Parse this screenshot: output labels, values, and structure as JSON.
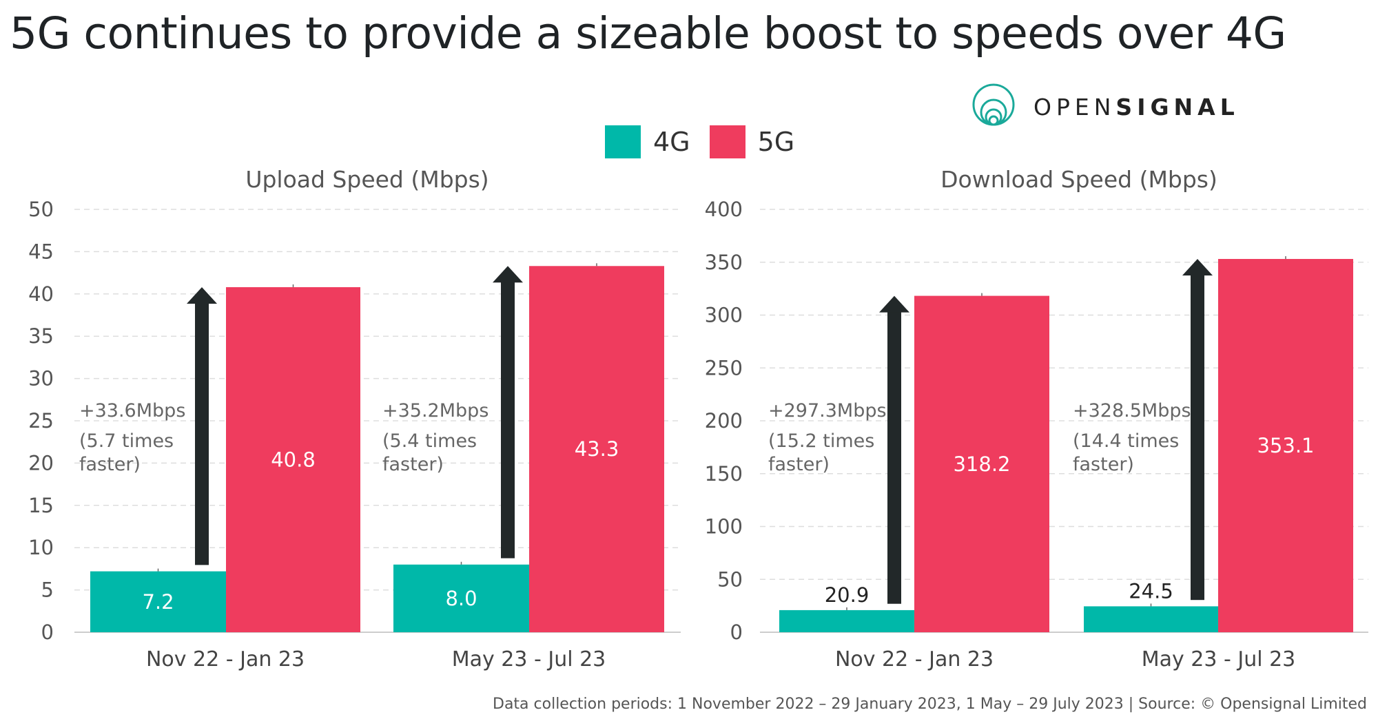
{
  "title": "5G continues to provide a sizeable boost to speeds over 4G",
  "logo": {
    "text_light": "OPEN",
    "text_bold": "SIGNAL"
  },
  "legend": [
    {
      "label": "4G",
      "color": "#00b8a9"
    },
    {
      "label": "5G",
      "color": "#ef3c5e"
    }
  ],
  "footer": "Data collection periods: 1 November 2022 – 29 January 2023, 1 May – 29 July 2023 | Source:  © Opensignal Limited",
  "chart_data": [
    {
      "type": "bar",
      "title": "Upload Speed (Mbps)",
      "categories": [
        "Nov 22 - Jan 23",
        "May 23 - Jul 23"
      ],
      "series": [
        {
          "name": "4G",
          "values": [
            7.2,
            8.0
          ],
          "labels": [
            "7.2",
            "8.0"
          ]
        },
        {
          "name": "5G",
          "values": [
            40.8,
            43.3
          ],
          "labels": [
            "40.8",
            "43.3"
          ]
        }
      ],
      "ylim": [
        0,
        50
      ],
      "yticks": [
        0,
        5,
        10,
        15,
        20,
        25,
        30,
        35,
        40,
        45,
        50
      ],
      "grid": true,
      "annotations": [
        [
          "+33.6Mbps",
          "(5.7 times",
          "faster)"
        ],
        [
          "+35.2Mbps",
          "(5.4 times",
          "faster)"
        ]
      ]
    },
    {
      "type": "bar",
      "title": "Download Speed (Mbps)",
      "categories": [
        "Nov 22 - Jan 23",
        "May 23 - Jul 23"
      ],
      "series": [
        {
          "name": "4G",
          "values": [
            20.9,
            24.5
          ],
          "labels": [
            "20.9",
            "24.5"
          ]
        },
        {
          "name": "5G",
          "values": [
            318.2,
            353.1
          ],
          "labels": [
            "318.2",
            "353.1"
          ]
        }
      ],
      "ylim": [
        0,
        400
      ],
      "yticks": [
        0,
        50,
        100,
        150,
        200,
        250,
        300,
        350,
        400
      ],
      "grid": true,
      "annotations": [
        [
          "+297.3Mbps",
          "(15.2 times",
          "faster)"
        ],
        [
          "+328.5Mbps",
          "(14.4 times",
          "faster)"
        ]
      ]
    }
  ]
}
